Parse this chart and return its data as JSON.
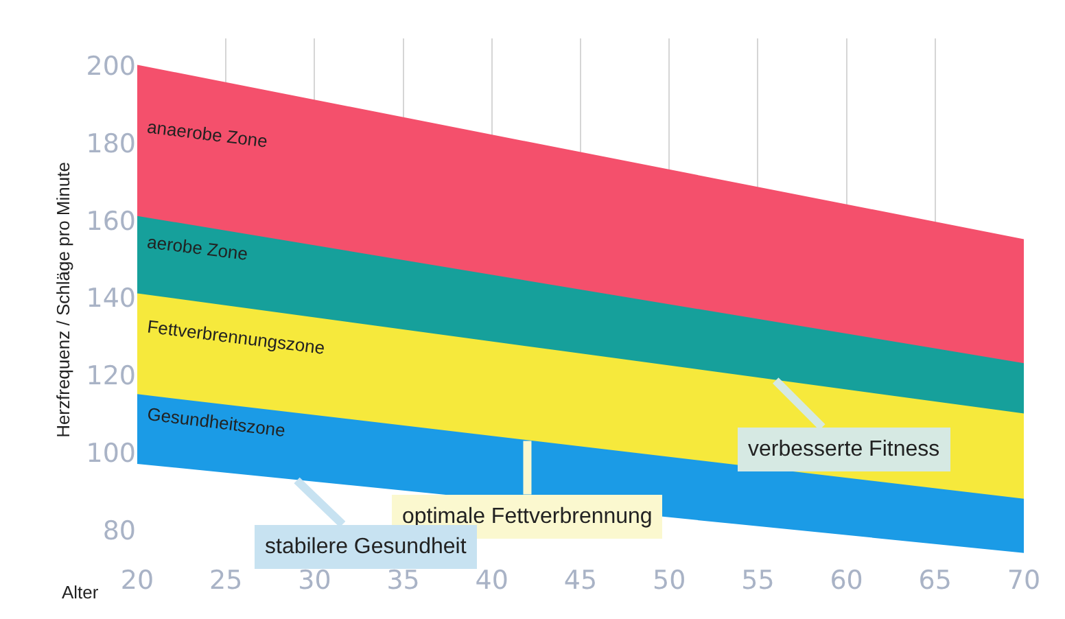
{
  "chart_data": {
    "type": "area",
    "xlabel": "Alter",
    "ylabel": "Herzfrequenz / Schläge pro Minute",
    "x": [
      20,
      70
    ],
    "series": [
      {
        "color": "#ffffff",
        "values": [
          97,
          74
        ]
      },
      {
        "name": "Gesundheitszone",
        "color": "#1b9be6",
        "values": [
          115,
          88
        ]
      },
      {
        "name": "Fettverbrennungszone",
        "color": "#f6e93c",
        "values": [
          141,
          110
        ]
      },
      {
        "name": "aerobe Zone",
        "color": "#16a09b",
        "values": [
          161,
          123
        ]
      },
      {
        "name": "anaerobe Zone",
        "color": "#f4506c",
        "values": [
          200,
          155
        ]
      }
    ],
    "xlim": [
      20,
      70
    ],
    "xticks": [
      20,
      25,
      30,
      35,
      40,
      45,
      50,
      55,
      60,
      65,
      70
    ],
    "ylim": [
      72,
      207
    ],
    "yticks": [
      80,
      100,
      120,
      140,
      160,
      180,
      200
    ],
    "grid": "x",
    "legend": false,
    "annotations": [
      {
        "text": "verbesserte Fitness",
        "x": 56,
        "y": 118.7
      },
      {
        "text": "optimale Fettverbrennung",
        "x": 42,
        "y": 103.1
      },
      {
        "text": "stabilere Gesundheit",
        "x": 29,
        "y": 92.9
      }
    ]
  }
}
